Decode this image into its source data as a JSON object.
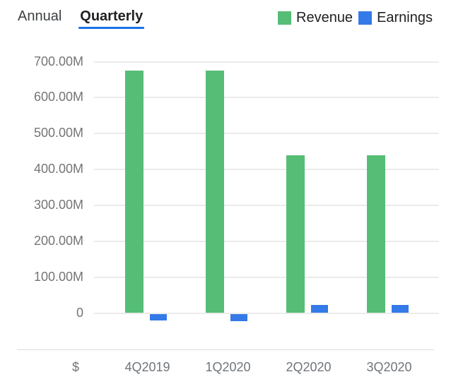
{
  "header": {
    "tabs": [
      {
        "label": "Annual",
        "active": false
      },
      {
        "label": "Quarterly",
        "active": true
      }
    ],
    "legend": [
      {
        "label": "Revenue",
        "color": "#56bd76"
      },
      {
        "label": "Earnings",
        "color": "#347ae8"
      }
    ]
  },
  "colors": {
    "tab_underline": "#1a73e8",
    "revenue_green": "#56bd76",
    "earnings_blue": "#347ae8",
    "gridline": "#ebebeb",
    "axis_text": "#70757a"
  },
  "chart_data": {
    "type": "bar",
    "title": "",
    "categories": [
      "4Q2019",
      "1Q2020",
      "2Q2020",
      "3Q2020"
    ],
    "series": [
      {
        "name": "Revenue",
        "color": "#56bd76",
        "values": [
          675,
          675,
          440,
          440
        ]
      },
      {
        "name": "Earnings",
        "color": "#347ae8",
        "values": [
          -19,
          -21,
          23,
          23
        ]
      }
    ],
    "unit": "M (millions USD)",
    "currency_label": "$",
    "xlabel": "",
    "ylabel": "",
    "y_ticks": [
      "700.00M",
      "600.00M",
      "500.00M",
      "400.00M",
      "300.00M",
      "200.00M",
      "100.00M",
      "0"
    ],
    "y_tick_values": [
      700,
      600,
      500,
      400,
      300,
      200,
      100,
      0
    ],
    "ylim": [
      -40,
      700
    ],
    "grid": true,
    "legend_position": "top-right"
  }
}
